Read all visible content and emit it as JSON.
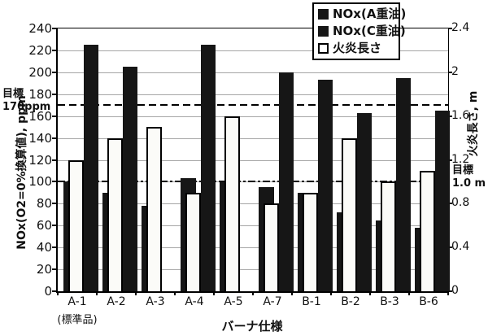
{
  "colors": {
    "bar_black": "#161616",
    "bar_white_fill": "#fbfbf8",
    "gridline": "#a6a6a6",
    "axis_line": "#000000",
    "background": "#ffffff"
  },
  "chart_data": {
    "type": "bar",
    "title": "",
    "categories": [
      "A-1",
      "A-2",
      "A-3",
      "A-4",
      "A-5",
      "A-7",
      "B-1",
      "B-2",
      "B-3",
      "B-6"
    ],
    "category_footnote": "(標準品)",
    "category_footnote_index": 0,
    "series": [
      {
        "name": "NOx(A重油)",
        "axis": "left",
        "fill": "black",
        "values": [
          100,
          90,
          78,
          103,
          100,
          95,
          90,
          72,
          65,
          58
        ]
      },
      {
        "name": "NOx(C重油)",
        "axis": "left",
        "fill": "black",
        "values": [
          225,
          205,
          null,
          225,
          null,
          200,
          193,
          163,
          195,
          165
        ]
      },
      {
        "name": "火炎長さ",
        "axis": "right",
        "fill": "white",
        "values": [
          1.2,
          1.4,
          1.5,
          0.9,
          1.6,
          0.8,
          0.9,
          1.4,
          1.0,
          1.1
        ]
      }
    ],
    "xlabel": "バーナ仕様",
    "left_axis": {
      "label": "NOx(O2=0%換算値), ppm",
      "min": 0,
      "max": 240,
      "step": 20
    },
    "right_axis": {
      "label": "火炎長さ, m",
      "min": 0,
      "max": 2.4,
      "step": 0.4
    },
    "targets": [
      {
        "axis": "left",
        "value": 170,
        "style": "dashed",
        "side": "left",
        "label_lines": [
          "目標",
          "170ppm"
        ]
      },
      {
        "axis": "left",
        "value": 100,
        "style": "dashdot",
        "side": "right",
        "label_lines": [
          "目標",
          "1.0 m"
        ]
      }
    ],
    "legend_position": "top-right",
    "grid": true
  }
}
